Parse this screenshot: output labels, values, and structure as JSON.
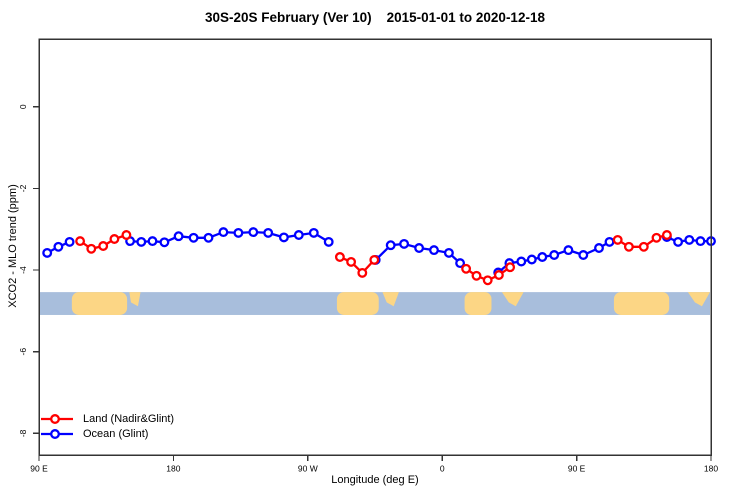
{
  "title": "30S-20S February (Ver 10)    2015-01-01 to 2020-12-18",
  "chart_data": {
    "type": "line",
    "title": "30S-20S February (Ver 10)  2015-01-01 to 2020-12-18",
    "xlabel": "Longitude (deg E)",
    "ylabel": "XCO2 - MLO trend (ppm)",
    "xlim": [
      90,
      540
    ],
    "ylim": [
      -8.53,
      1.66
    ],
    "x_axis": {
      "ticks": [
        90,
        180,
        270,
        360,
        450,
        540
      ],
      "labels": [
        "90 E",
        "180",
        "90 W",
        "0",
        "90 E",
        "180"
      ]
    },
    "y_axis": {
      "ticks": [
        0,
        -2,
        -4,
        -6,
        -8
      ],
      "labels": [
        "0",
        "-2",
        "-4",
        "-6",
        "-8"
      ]
    },
    "grid": "off",
    "legend_position": "bottom-left",
    "series": [
      {
        "name": "Ocean (Glint)",
        "color": "#0000ff",
        "marker": "open-circle",
        "segments": [
          [
            [
              95.5,
              -3.58
            ],
            [
              103,
              -3.43
            ],
            [
              110.5,
              -3.31
            ]
          ],
          [
            [
              151,
              -3.29
            ],
            [
              158.5,
              -3.31
            ],
            [
              166,
              -3.29
            ],
            [
              174,
              -3.32
            ],
            [
              183.5,
              -3.17
            ],
            [
              193.5,
              -3.21
            ],
            [
              203.5,
              -3.21
            ],
            [
              213.5,
              -3.07
            ],
            [
              223.5,
              -3.09
            ],
            [
              233.5,
              -3.07
            ],
            [
              243.5,
              -3.09
            ],
            [
              254,
              -3.2
            ],
            [
              264,
              -3.14
            ],
            [
              274,
              -3.09
            ],
            [
              284,
              -3.31
            ]
          ],
          [
            [
              315.5,
              -3.75
            ],
            [
              325.5,
              -3.39
            ],
            [
              334.5,
              -3.36
            ],
            [
              344.5,
              -3.46
            ],
            [
              354.5,
              -3.51
            ],
            [
              364.5,
              -3.58
            ],
            [
              372,
              -3.83
            ]
          ],
          [
            [
              397.5,
              -4.06
            ],
            [
              405,
              -3.83
            ],
            [
              413,
              -3.79
            ],
            [
              420,
              -3.74
            ],
            [
              427,
              -3.68
            ],
            [
              435,
              -3.63
            ],
            [
              444.5,
              -3.51
            ],
            [
              454.5,
              -3.63
            ],
            [
              465,
              -3.46
            ],
            [
              472,
              -3.31
            ]
          ],
          [
            [
              510.5,
              -3.19
            ],
            [
              518,
              -3.31
            ],
            [
              525.5,
              -3.26
            ],
            [
              533,
              -3.29
            ],
            [
              540,
              -3.29
            ]
          ]
        ]
      },
      {
        "name": "Land (Nadir&Glint)",
        "color": "#ff0000",
        "marker": "open-circle",
        "segments": [
          [
            [
              117.5,
              -3.29
            ],
            [
              125,
              -3.48
            ],
            [
              133,
              -3.41
            ],
            [
              140.5,
              -3.24
            ],
            [
              148.5,
              -3.14
            ]
          ],
          [
            [
              291.5,
              -3.68
            ],
            [
              299,
              -3.8
            ],
            [
              306.5,
              -4.07
            ],
            [
              314.5,
              -3.75
            ]
          ],
          [
            [
              376,
              -3.97
            ],
            [
              383,
              -4.14
            ],
            [
              390.5,
              -4.25
            ],
            [
              398,
              -4.12
            ],
            [
              405.5,
              -3.93
            ]
          ],
          [
            [
              477.5,
              -3.26
            ],
            [
              485,
              -3.43
            ],
            [
              495,
              -3.43
            ],
            [
              503.5,
              -3.21
            ],
            [
              510.5,
              -3.14
            ]
          ]
        ]
      }
    ],
    "map_band": {
      "description": "land/ocean strip along longitude",
      "ocean_color": "#a8bedc",
      "land_color": "#fcd685",
      "value_range_ppm": [
        -4.54,
        -5.1
      ],
      "land_patches": [
        {
          "lon": [
            112,
            149
          ],
          "shape": "full"
        },
        {
          "lon": [
            150.5,
            158
          ],
          "shape": "top"
        },
        {
          "lon": [
            289.5,
            317.5
          ],
          "shape": "full"
        },
        {
          "lon": [
            320,
            331
          ],
          "shape": "top"
        },
        {
          "lon": [
            375,
            393
          ],
          "shape": "full"
        },
        {
          "lon": [
            400,
            414.5
          ],
          "shape": "top"
        },
        {
          "lon": [
            475,
            512
          ],
          "shape": "full"
        },
        {
          "lon": [
            524.5,
            540
          ],
          "shape": "top"
        }
      ]
    }
  },
  "legend": {
    "items": [
      {
        "label": "Land (Nadir&Glint)",
        "color": "#ff0000"
      },
      {
        "label": "Ocean (Glint)",
        "color": "#0000ff"
      }
    ]
  },
  "frame_color": "#333333"
}
